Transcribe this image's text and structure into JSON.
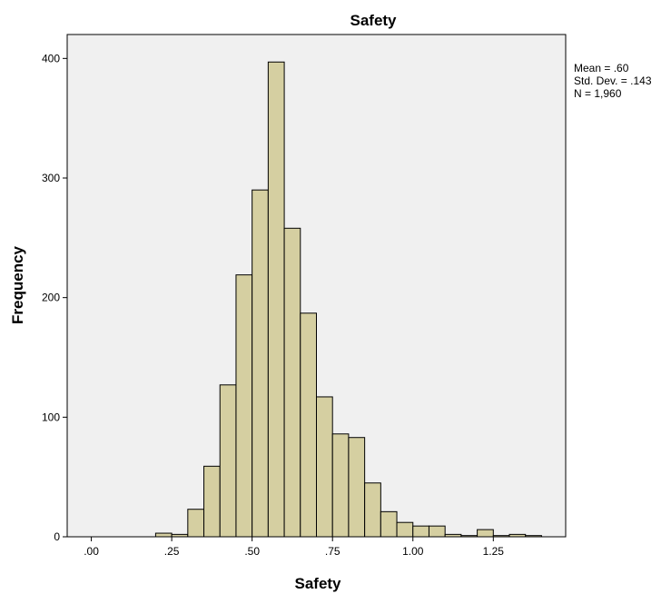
{
  "chart_data": {
    "type": "bar",
    "title": "Safety",
    "xlabel": "Safety",
    "ylabel": "Frequency",
    "xlim": [
      -0.075,
      1.475
    ],
    "ylim": [
      0,
      420
    ],
    "grid": false,
    "colors": {
      "bar_fill": "#d5cfa1",
      "bar_stroke": "#000000",
      "plot_background": "#f0f0f0"
    },
    "x_ticks": [
      {
        "value": 0.0,
        "label": ".00"
      },
      {
        "value": 0.25,
        "label": ".25"
      },
      {
        "value": 0.5,
        "label": ".50"
      },
      {
        "value": 0.75,
        "label": ".75"
      },
      {
        "value": 1.0,
        "label": "1.00"
      },
      {
        "value": 1.25,
        "label": "1.25"
      }
    ],
    "y_ticks": [
      {
        "value": 0,
        "label": "0"
      },
      {
        "value": 100,
        "label": "100"
      },
      {
        "value": 200,
        "label": "200"
      },
      {
        "value": 300,
        "label": "300"
      },
      {
        "value": 400,
        "label": "400"
      }
    ],
    "bin_width": 0.05,
    "bins": [
      {
        "start": 0.2,
        "count": 3
      },
      {
        "start": 0.25,
        "count": 2
      },
      {
        "start": 0.3,
        "count": 23
      },
      {
        "start": 0.35,
        "count": 59
      },
      {
        "start": 0.4,
        "count": 127
      },
      {
        "start": 0.45,
        "count": 219
      },
      {
        "start": 0.5,
        "count": 290
      },
      {
        "start": 0.55,
        "count": 397
      },
      {
        "start": 0.6,
        "count": 258
      },
      {
        "start": 0.65,
        "count": 187
      },
      {
        "start": 0.7,
        "count": 117
      },
      {
        "start": 0.75,
        "count": 86
      },
      {
        "start": 0.8,
        "count": 83
      },
      {
        "start": 0.85,
        "count": 45
      },
      {
        "start": 0.9,
        "count": 21
      },
      {
        "start": 0.95,
        "count": 12
      },
      {
        "start": 1.0,
        "count": 9
      },
      {
        "start": 1.05,
        "count": 9
      },
      {
        "start": 1.1,
        "count": 2
      },
      {
        "start": 1.15,
        "count": 1
      },
      {
        "start": 1.2,
        "count": 6
      },
      {
        "start": 1.25,
        "count": 1
      },
      {
        "start": 1.3,
        "count": 2
      },
      {
        "start": 1.35,
        "count": 1
      }
    ],
    "stats": {
      "mean": "Mean = .60",
      "std_dev": "Std. Dev. = .143",
      "n": "N = 1,960"
    }
  }
}
